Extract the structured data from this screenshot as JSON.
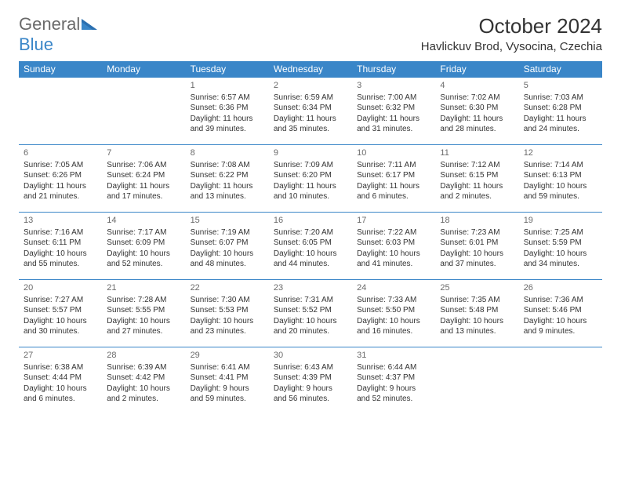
{
  "logo": {
    "line1": "General",
    "line2": "Blue"
  },
  "header": {
    "month_title": "October 2024",
    "location": "Havlickuv Brod, Vysocina, Czechia"
  },
  "colors": {
    "accent": "#3a86c8",
    "text": "#333333",
    "muted": "#6a6a6a",
    "bg": "#ffffff"
  },
  "calendar": {
    "day_headers": [
      "Sunday",
      "Monday",
      "Tuesday",
      "Wednesday",
      "Thursday",
      "Friday",
      "Saturday"
    ],
    "weeks": [
      [
        null,
        null,
        {
          "n": "1",
          "sr": "6:57 AM",
          "ss": "6:36 PM",
          "dl": "11 hours and 39 minutes."
        },
        {
          "n": "2",
          "sr": "6:59 AM",
          "ss": "6:34 PM",
          "dl": "11 hours and 35 minutes."
        },
        {
          "n": "3",
          "sr": "7:00 AM",
          "ss": "6:32 PM",
          "dl": "11 hours and 31 minutes."
        },
        {
          "n": "4",
          "sr": "7:02 AM",
          "ss": "6:30 PM",
          "dl": "11 hours and 28 minutes."
        },
        {
          "n": "5",
          "sr": "7:03 AM",
          "ss": "6:28 PM",
          "dl": "11 hours and 24 minutes."
        }
      ],
      [
        {
          "n": "6",
          "sr": "7:05 AM",
          "ss": "6:26 PM",
          "dl": "11 hours and 21 minutes."
        },
        {
          "n": "7",
          "sr": "7:06 AM",
          "ss": "6:24 PM",
          "dl": "11 hours and 17 minutes."
        },
        {
          "n": "8",
          "sr": "7:08 AM",
          "ss": "6:22 PM",
          "dl": "11 hours and 13 minutes."
        },
        {
          "n": "9",
          "sr": "7:09 AM",
          "ss": "6:20 PM",
          "dl": "11 hours and 10 minutes."
        },
        {
          "n": "10",
          "sr": "7:11 AM",
          "ss": "6:17 PM",
          "dl": "11 hours and 6 minutes."
        },
        {
          "n": "11",
          "sr": "7:12 AM",
          "ss": "6:15 PM",
          "dl": "11 hours and 2 minutes."
        },
        {
          "n": "12",
          "sr": "7:14 AM",
          "ss": "6:13 PM",
          "dl": "10 hours and 59 minutes."
        }
      ],
      [
        {
          "n": "13",
          "sr": "7:16 AM",
          "ss": "6:11 PM",
          "dl": "10 hours and 55 minutes."
        },
        {
          "n": "14",
          "sr": "7:17 AM",
          "ss": "6:09 PM",
          "dl": "10 hours and 52 minutes."
        },
        {
          "n": "15",
          "sr": "7:19 AM",
          "ss": "6:07 PM",
          "dl": "10 hours and 48 minutes."
        },
        {
          "n": "16",
          "sr": "7:20 AM",
          "ss": "6:05 PM",
          "dl": "10 hours and 44 minutes."
        },
        {
          "n": "17",
          "sr": "7:22 AM",
          "ss": "6:03 PM",
          "dl": "10 hours and 41 minutes."
        },
        {
          "n": "18",
          "sr": "7:23 AM",
          "ss": "6:01 PM",
          "dl": "10 hours and 37 minutes."
        },
        {
          "n": "19",
          "sr": "7:25 AM",
          "ss": "5:59 PM",
          "dl": "10 hours and 34 minutes."
        }
      ],
      [
        {
          "n": "20",
          "sr": "7:27 AM",
          "ss": "5:57 PM",
          "dl": "10 hours and 30 minutes."
        },
        {
          "n": "21",
          "sr": "7:28 AM",
          "ss": "5:55 PM",
          "dl": "10 hours and 27 minutes."
        },
        {
          "n": "22",
          "sr": "7:30 AM",
          "ss": "5:53 PM",
          "dl": "10 hours and 23 minutes."
        },
        {
          "n": "23",
          "sr": "7:31 AM",
          "ss": "5:52 PM",
          "dl": "10 hours and 20 minutes."
        },
        {
          "n": "24",
          "sr": "7:33 AM",
          "ss": "5:50 PM",
          "dl": "10 hours and 16 minutes."
        },
        {
          "n": "25",
          "sr": "7:35 AM",
          "ss": "5:48 PM",
          "dl": "10 hours and 13 minutes."
        },
        {
          "n": "26",
          "sr": "7:36 AM",
          "ss": "5:46 PM",
          "dl": "10 hours and 9 minutes."
        }
      ],
      [
        {
          "n": "27",
          "sr": "6:38 AM",
          "ss": "4:44 PM",
          "dl": "10 hours and 6 minutes."
        },
        {
          "n": "28",
          "sr": "6:39 AM",
          "ss": "4:42 PM",
          "dl": "10 hours and 2 minutes."
        },
        {
          "n": "29",
          "sr": "6:41 AM",
          "ss": "4:41 PM",
          "dl": "9 hours and 59 minutes."
        },
        {
          "n": "30",
          "sr": "6:43 AM",
          "ss": "4:39 PM",
          "dl": "9 hours and 56 minutes."
        },
        {
          "n": "31",
          "sr": "6:44 AM",
          "ss": "4:37 PM",
          "dl": "9 hours and 52 minutes."
        },
        null,
        null
      ]
    ],
    "labels": {
      "sunrise": "Sunrise:",
      "sunset": "Sunset:",
      "daylight": "Daylight:"
    }
  }
}
